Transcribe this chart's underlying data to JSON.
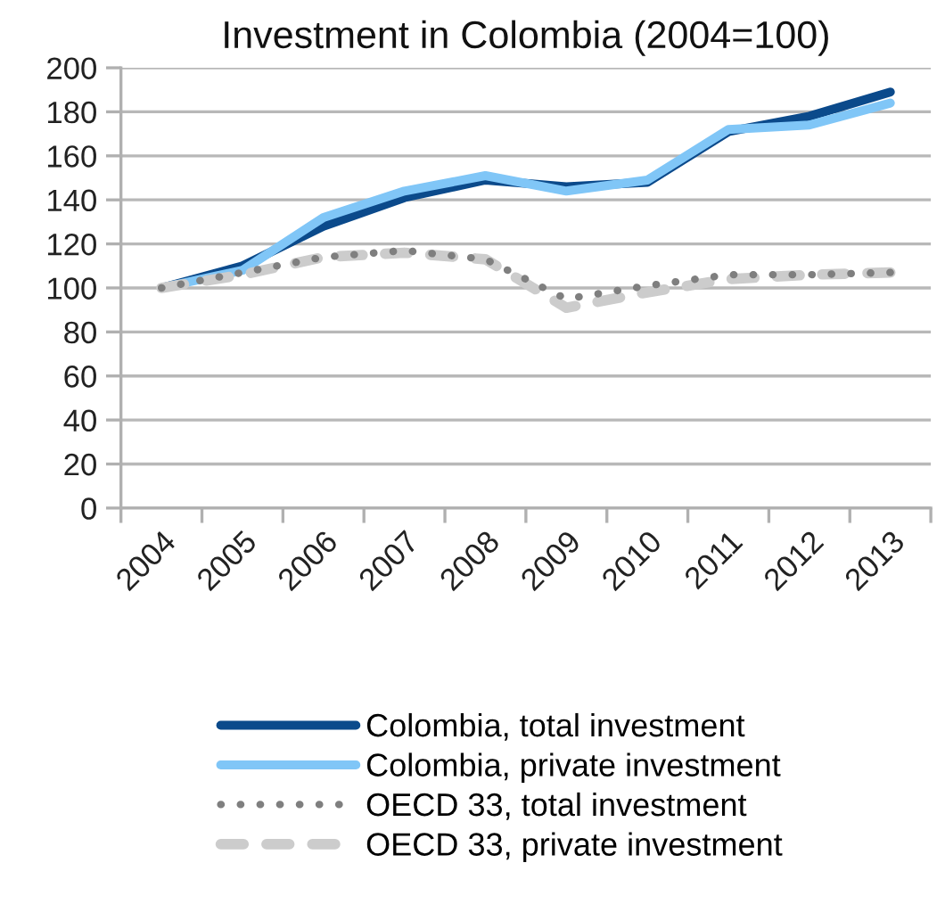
{
  "chart_data": {
    "type": "line",
    "title": "Investment in Colombia (2004=100)",
    "categories": [
      "2004",
      "2005",
      "2006",
      "2007",
      "2008",
      "2009",
      "2010",
      "2011",
      "2012",
      "2013"
    ],
    "ylim": [
      0,
      200
    ],
    "yticks": [
      0,
      20,
      40,
      60,
      80,
      100,
      120,
      140,
      160,
      180,
      200
    ],
    "grid": "y",
    "legend": "bottom",
    "series": [
      {
        "name": "Colombia, total investment",
        "color": "#0b4a8b",
        "line_style": "solid",
        "values": [
          100,
          110,
          128,
          141,
          149,
          146,
          148,
          171,
          178,
          189
        ]
      },
      {
        "name": "Colombia, private investment",
        "color": "#80c6f7",
        "line_style": "solid",
        "values": [
          100,
          108,
          132,
          144,
          151,
          144,
          149,
          172,
          174,
          184
        ]
      },
      {
        "name": "OECD 33, total investment",
        "color": "#7f7f7f",
        "line_style": "dotted",
        "values": [
          100,
          107,
          114,
          117,
          113,
          95,
          101,
          106,
          106,
          107
        ]
      },
      {
        "name": "OECD 33, private investment",
        "color": "#cccccc",
        "line_style": "dashed",
        "values": [
          100,
          106,
          114,
          116,
          113,
          91,
          98,
          104,
          106,
          107
        ]
      }
    ]
  }
}
